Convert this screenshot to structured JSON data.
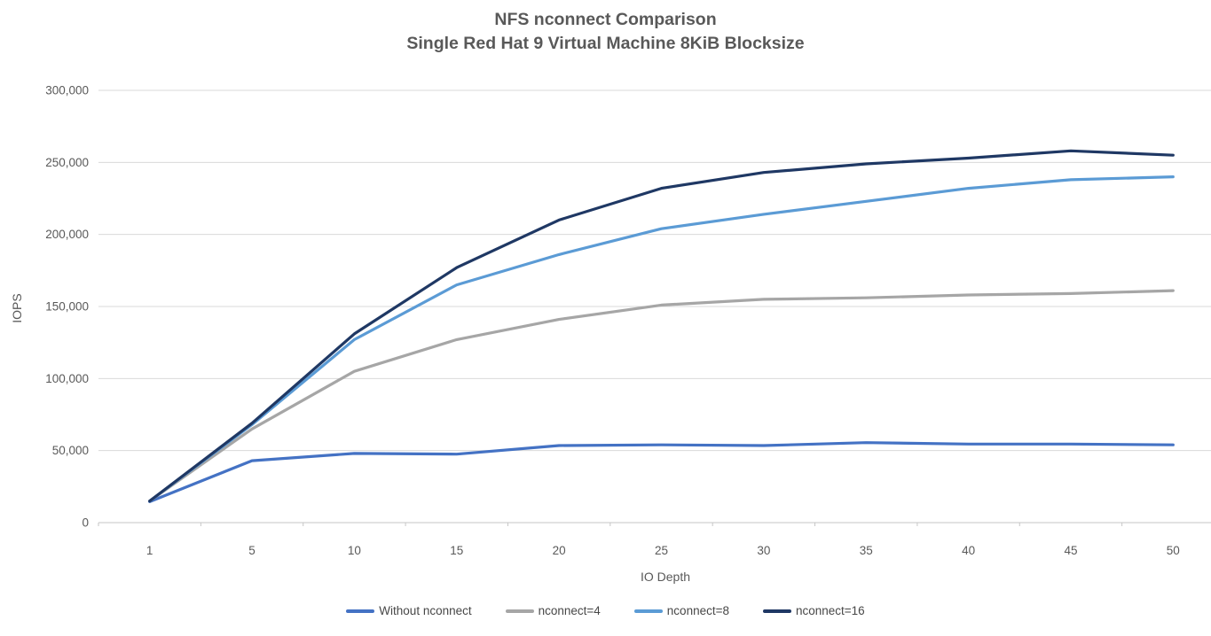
{
  "title": {
    "line1": "NFS nconnect Comparison",
    "line2": "Single Red Hat 9 Virtual Machine 8KiB Blocksize"
  },
  "chart_data": {
    "type": "line",
    "title": "NFS nconnect Comparison",
    "subtitle": "Single Red Hat 9 Virtual Machine 8KiB Blocksize",
    "xlabel": "IO Depth",
    "ylabel": "IOPS",
    "categories": [
      1,
      5,
      10,
      15,
      20,
      25,
      30,
      35,
      40,
      45,
      50
    ],
    "series": [
      {
        "name": "Without nconnect",
        "color": "#4472C4",
        "values": [
          14500,
          43000,
          48000,
          47500,
          53500,
          54000,
          53500,
          55500,
          54500,
          54500,
          54000
        ]
      },
      {
        "name": "nconnect=4",
        "color": "#A6A6A6",
        "values": [
          15000,
          65000,
          105000,
          127000,
          141000,
          151000,
          155000,
          156000,
          158000,
          159000,
          161000
        ]
      },
      {
        "name": "nconnect=8",
        "color": "#5B9BD5",
        "values": [
          15000,
          68000,
          127000,
          165000,
          186000,
          204000,
          214000,
          223000,
          232000,
          238000,
          240000
        ]
      },
      {
        "name": "nconnect=16",
        "color": "#1F3864",
        "values": [
          15000,
          69000,
          131000,
          177000,
          210000,
          232000,
          243000,
          249000,
          253000,
          258000,
          255000
        ]
      }
    ],
    "ylim": [
      0,
      300000
    ],
    "ytick_step": 50000,
    "ytick_labels": [
      "0",
      "50,000",
      "100,000",
      "150,000",
      "200,000",
      "250,000",
      "300,000"
    ],
    "grid": true,
    "legend_position": "bottom",
    "style": {
      "gridline_color": "#D9D9D9",
      "axis_color": "#C6C6C6",
      "text_color": "#595959",
      "line_width": 3.2
    }
  }
}
